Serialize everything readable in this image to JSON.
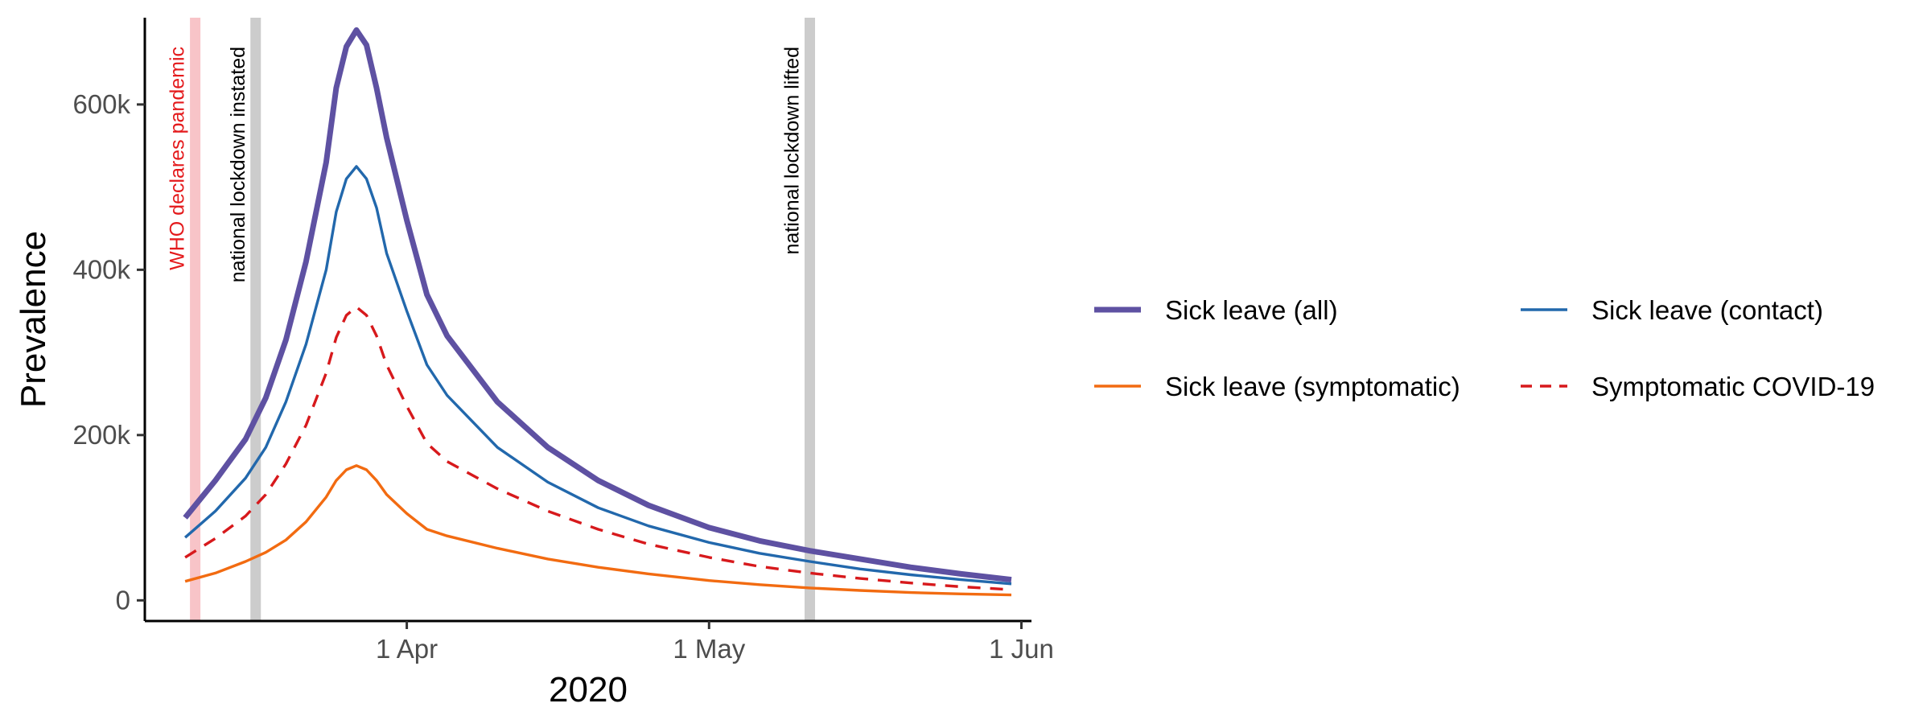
{
  "chart_data": {
    "type": "line",
    "title": "",
    "xlabel": "2020",
    "ylabel": "Prevalence",
    "x_axis": {
      "type": "date",
      "range": [
        "2020-03-06",
        "2020-06-02"
      ],
      "ticks": [
        {
          "date": "2020-04-01",
          "label": "1 Apr"
        },
        {
          "date": "2020-05-01",
          "label": "1 May"
        },
        {
          "date": "2020-06-01",
          "label": "1 Jun"
        }
      ]
    },
    "y_axis": {
      "range": [
        -25000,
        705000
      ],
      "ticks": [
        {
          "value": 0,
          "label": "0"
        },
        {
          "value": 200000,
          "label": "200k"
        },
        {
          "value": 400000,
          "label": "400k"
        },
        {
          "value": 600000,
          "label": "600k"
        }
      ]
    },
    "grid": false,
    "legend_position": "right",
    "vertical_lines": [
      {
        "date": "2020-03-11",
        "label": "WHO declares pandemic",
        "color": "#f8c4c8",
        "label_color": "#e41a1c"
      },
      {
        "date": "2020-03-17",
        "label": "national lockdown instated",
        "color": "#cccccc",
        "label_color": "#000000"
      },
      {
        "date": "2020-05-11",
        "label": "national lockdown lifted",
        "color": "#cccccc",
        "label_color": "#000000"
      }
    ],
    "series": [
      {
        "name": "Sick leave (all)",
        "color": "#5e51a2",
        "style": "solid",
        "weight": "thick",
        "points": [
          [
            "2020-03-10",
            100000
          ],
          [
            "2020-03-13",
            145000
          ],
          [
            "2020-03-16",
            195000
          ],
          [
            "2020-03-18",
            245000
          ],
          [
            "2020-03-20",
            315000
          ],
          [
            "2020-03-22",
            410000
          ],
          [
            "2020-03-24",
            530000
          ],
          [
            "2020-03-25",
            620000
          ],
          [
            "2020-03-26",
            670000
          ],
          [
            "2020-03-27",
            690000
          ],
          [
            "2020-03-28",
            672000
          ],
          [
            "2020-03-29",
            620000
          ],
          [
            "2020-03-30",
            560000
          ],
          [
            "2020-04-01",
            460000
          ],
          [
            "2020-04-03",
            370000
          ],
          [
            "2020-04-05",
            320000
          ],
          [
            "2020-04-10",
            240000
          ],
          [
            "2020-04-15",
            185000
          ],
          [
            "2020-04-20",
            145000
          ],
          [
            "2020-04-25",
            115000
          ],
          [
            "2020-05-01",
            88000
          ],
          [
            "2020-05-06",
            72000
          ],
          [
            "2020-05-11",
            60000
          ],
          [
            "2020-05-16",
            50000
          ],
          [
            "2020-05-21",
            40000
          ],
          [
            "2020-05-26",
            32000
          ],
          [
            "2020-05-31",
            25000
          ]
        ]
      },
      {
        "name": "Sick leave (contact)",
        "color": "#2268ac",
        "style": "solid",
        "weight": "normal",
        "points": [
          [
            "2020-03-10",
            76000
          ],
          [
            "2020-03-13",
            108000
          ],
          [
            "2020-03-16",
            148000
          ],
          [
            "2020-03-18",
            185000
          ],
          [
            "2020-03-20",
            240000
          ],
          [
            "2020-03-22",
            310000
          ],
          [
            "2020-03-24",
            400000
          ],
          [
            "2020-03-25",
            470000
          ],
          [
            "2020-03-26",
            510000
          ],
          [
            "2020-03-27",
            525000
          ],
          [
            "2020-03-28",
            510000
          ],
          [
            "2020-03-29",
            475000
          ],
          [
            "2020-03-30",
            420000
          ],
          [
            "2020-04-01",
            350000
          ],
          [
            "2020-04-03",
            285000
          ],
          [
            "2020-04-05",
            248000
          ],
          [
            "2020-04-10",
            185000
          ],
          [
            "2020-04-15",
            143000
          ],
          [
            "2020-04-20",
            112000
          ],
          [
            "2020-04-25",
            90000
          ],
          [
            "2020-05-01",
            70000
          ],
          [
            "2020-05-06",
            57000
          ],
          [
            "2020-05-11",
            47000
          ],
          [
            "2020-05-16",
            38000
          ],
          [
            "2020-05-21",
            31000
          ],
          [
            "2020-05-26",
            25000
          ],
          [
            "2020-05-31",
            20000
          ]
        ]
      },
      {
        "name": "Sick leave (symptomatic)",
        "color": "#f26b11",
        "style": "solid",
        "weight": "normal",
        "points": [
          [
            "2020-03-10",
            23000
          ],
          [
            "2020-03-13",
            33000
          ],
          [
            "2020-03-16",
            47000
          ],
          [
            "2020-03-18",
            58000
          ],
          [
            "2020-03-20",
            73000
          ],
          [
            "2020-03-22",
            95000
          ],
          [
            "2020-03-24",
            125000
          ],
          [
            "2020-03-25",
            145000
          ],
          [
            "2020-03-26",
            158000
          ],
          [
            "2020-03-27",
            163000
          ],
          [
            "2020-03-28",
            158000
          ],
          [
            "2020-03-29",
            145000
          ],
          [
            "2020-03-30",
            128000
          ],
          [
            "2020-04-01",
            105000
          ],
          [
            "2020-04-03",
            86000
          ],
          [
            "2020-04-05",
            78000
          ],
          [
            "2020-04-10",
            63000
          ],
          [
            "2020-04-15",
            50000
          ],
          [
            "2020-04-20",
            40000
          ],
          [
            "2020-04-25",
            32000
          ],
          [
            "2020-05-01",
            24000
          ],
          [
            "2020-05-06",
            19000
          ],
          [
            "2020-05-11",
            15000
          ],
          [
            "2020-05-16",
            12000
          ],
          [
            "2020-05-21",
            9500
          ],
          [
            "2020-05-26",
            7800
          ],
          [
            "2020-05-31",
            6500
          ]
        ]
      },
      {
        "name": "Symptomatic COVID-19",
        "color": "#d7191c",
        "style": "dashed",
        "weight": "normal",
        "points": [
          [
            "2020-03-10",
            52000
          ],
          [
            "2020-03-13",
            75000
          ],
          [
            "2020-03-16",
            102000
          ],
          [
            "2020-03-18",
            128000
          ],
          [
            "2020-03-20",
            165000
          ],
          [
            "2020-03-22",
            212000
          ],
          [
            "2020-03-24",
            275000
          ],
          [
            "2020-03-25",
            318000
          ],
          [
            "2020-03-26",
            345000
          ],
          [
            "2020-03-27",
            355000
          ],
          [
            "2020-03-28",
            345000
          ],
          [
            "2020-03-29",
            320000
          ],
          [
            "2020-03-30",
            285000
          ],
          [
            "2020-04-01",
            235000
          ],
          [
            "2020-04-03",
            190000
          ],
          [
            "2020-04-05",
            168000
          ],
          [
            "2020-04-10",
            135000
          ],
          [
            "2020-04-15",
            108000
          ],
          [
            "2020-04-20",
            86000
          ],
          [
            "2020-04-25",
            68000
          ],
          [
            "2020-05-01",
            52000
          ],
          [
            "2020-05-06",
            41000
          ],
          [
            "2020-05-11",
            33000
          ],
          [
            "2020-05-16",
            26500
          ],
          [
            "2020-05-21",
            21000
          ],
          [
            "2020-05-26",
            16500
          ],
          [
            "2020-05-31",
            13000
          ]
        ]
      }
    ]
  }
}
